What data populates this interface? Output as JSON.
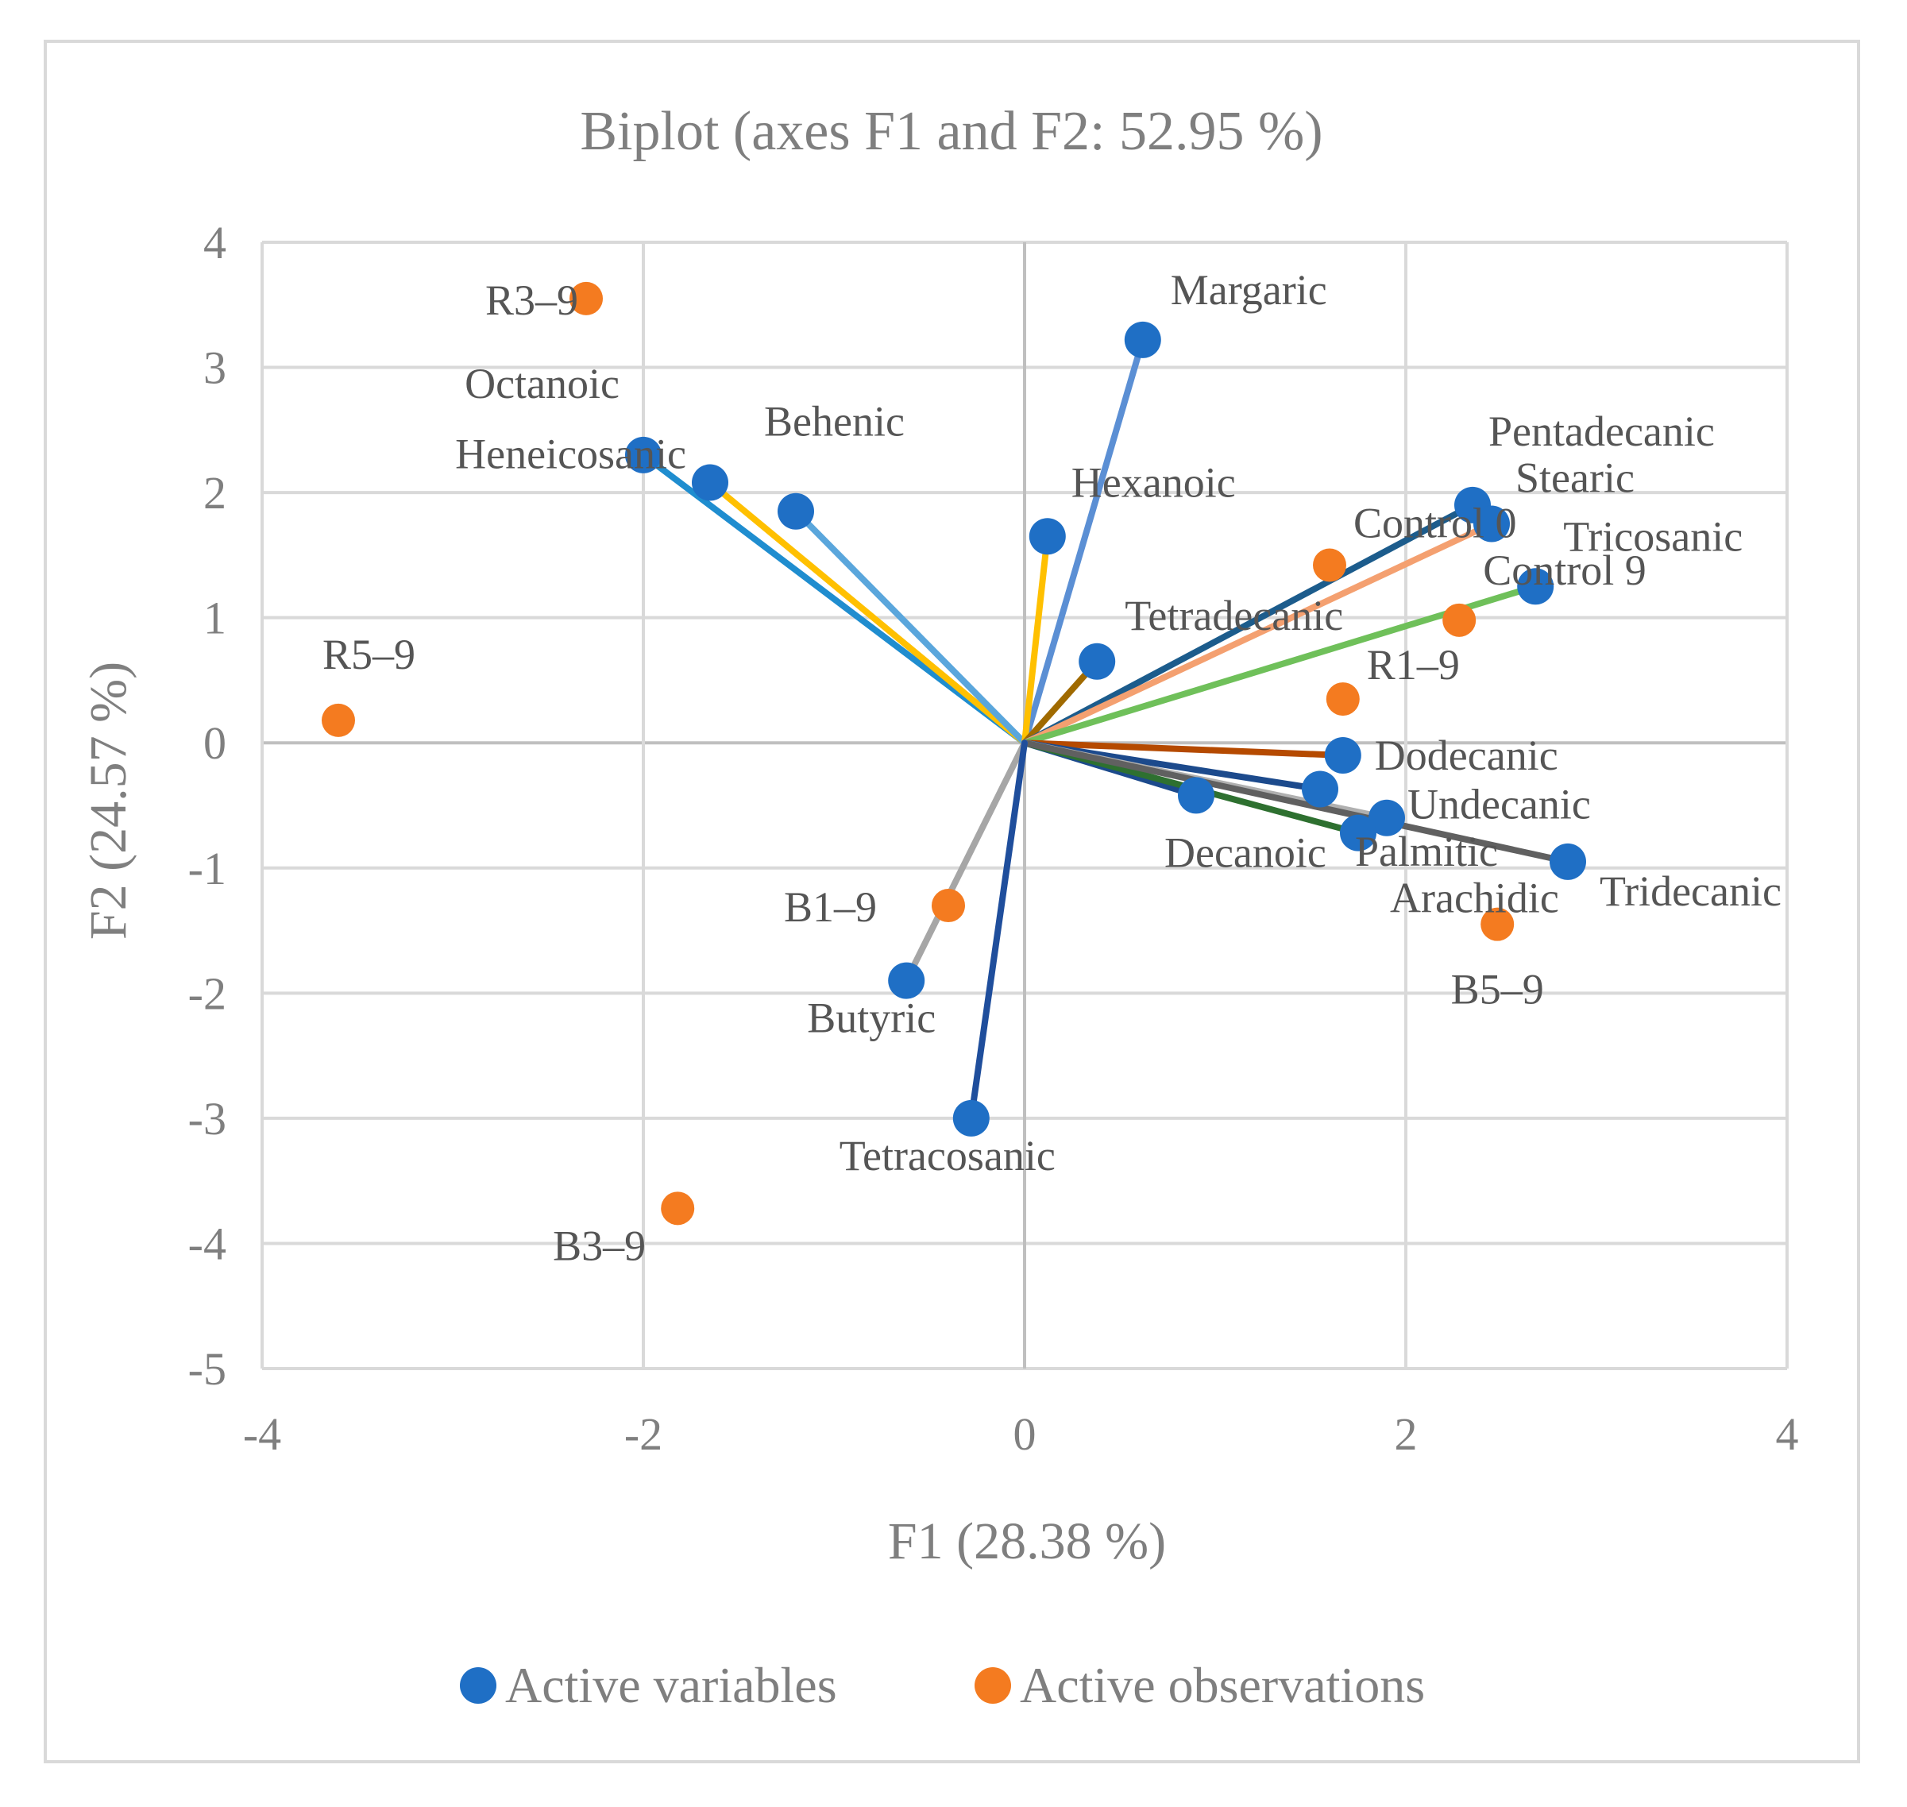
{
  "chart_data": {
    "type": "scatter",
    "subtype": "biplot",
    "title": "Biplot (axes F1 and F2: 52.95 %)",
    "xlabel": "F1 (28.38 %)",
    "ylabel": "F2 (24.57 %)",
    "xlim": [
      -4,
      4
    ],
    "ylim": [
      -5,
      4
    ],
    "xticks": [
      -4,
      -2,
      0,
      2,
      4
    ],
    "yticks": [
      4,
      3,
      2,
      1,
      0,
      -1,
      -2,
      -3,
      -4,
      -5
    ],
    "xtick_labels": [
      "-4",
      "-2",
      "0",
      "2",
      "4"
    ],
    "ytick_labels": [
      "4",
      "3",
      "2",
      "1",
      "0",
      "-1",
      "-2",
      "-3",
      "-4",
      "-5"
    ],
    "grid": true,
    "legend_position": "bottom",
    "legend": [
      {
        "name": "Active variables",
        "color": "#1f6fc5"
      },
      {
        "name": "Active observations",
        "color": "#f47b20"
      }
    ],
    "variables": [
      {
        "label": "Margaric",
        "x": 0.62,
        "y": 3.22,
        "color": "#5b8fd4"
      },
      {
        "label": "Octanoic",
        "x": -2.0,
        "y": 2.3,
        "color": "#1f8dcf"
      },
      {
        "label": "Heneicosanic",
        "x": -1.65,
        "y": 2.08,
        "color": "#ffc000"
      },
      {
        "label": "Behenic",
        "x": -1.2,
        "y": 1.85,
        "color": "#5aa6dc"
      },
      {
        "label": "Hexanoic",
        "x": 0.12,
        "y": 1.65,
        "color": "#ffc000"
      },
      {
        "label": "Tetradecanic",
        "x": 0.38,
        "y": 0.65,
        "color": "#a06a00"
      },
      {
        "label": "Pentadecanic",
        "x": 2.35,
        "y": 1.9,
        "color": "#1c5c8c"
      },
      {
        "label": "Stearic",
        "x": 2.45,
        "y": 1.75,
        "color": "#f4a070"
      },
      {
        "label": "Tricosanic",
        "x": 2.68,
        "y": 1.25,
        "color": "#6fc05a"
      },
      {
        "label": "Dodecanic",
        "x": 1.67,
        "y": -0.1,
        "color": "#b54a00"
      },
      {
        "label": "Undecanic",
        "x": 1.55,
        "y": -0.37,
        "color": "#1c4a8c"
      },
      {
        "label": "Decanoic",
        "x": 0.9,
        "y": -0.42,
        "color": "#1c4a8c"
      },
      {
        "label": "Palmitic",
        "x": 1.9,
        "y": -0.6,
        "color": "#b0b0b0"
      },
      {
        "label": "Arachidic",
        "x": 1.75,
        "y": -0.72,
        "color": "#2e7030"
      },
      {
        "label": "Tridecanic",
        "x": 2.85,
        "y": -0.95,
        "color": "#606060"
      },
      {
        "label": "Butyric",
        "x": -0.62,
        "y": -1.9,
        "color": "#a6a6a6"
      },
      {
        "label": "Tetracosanic",
        "x": -0.28,
        "y": -3.0,
        "color": "#1f4e9c"
      }
    ],
    "observations": [
      {
        "label": "R3–9",
        "x": -2.3,
        "y": 3.55
      },
      {
        "label": "R5–9",
        "x": -3.6,
        "y": 0.18
      },
      {
        "label": "Control 0",
        "x": 1.6,
        "y": 1.42
      },
      {
        "label": "Control 9",
        "x": 2.28,
        "y": 0.98
      },
      {
        "label": "R1–9",
        "x": 1.67,
        "y": 0.35
      },
      {
        "label": "B1–9",
        "x": -0.4,
        "y": -1.3
      },
      {
        "label": "B5–9",
        "x": 2.48,
        "y": -1.45
      },
      {
        "label": "B3–9",
        "x": -1.82,
        "y": -3.72
      }
    ]
  }
}
